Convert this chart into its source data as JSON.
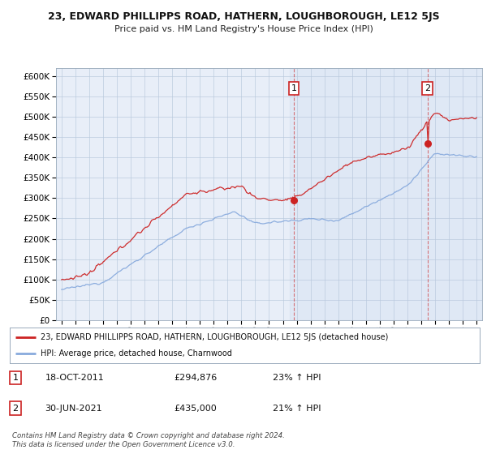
{
  "title": "23, EDWARD PHILLIPPS ROAD, HATHERN, LOUGHBOROUGH, LE12 5JS",
  "subtitle": "Price paid vs. HM Land Registry's House Price Index (HPI)",
  "bg_color": "#ffffff",
  "plot_bg": "#e8eef8",
  "plot_bg_right": "#dce8f5",
  "red_line_color": "#cc2222",
  "blue_line_color": "#88aadd",
  "sale1_x": 2011.8,
  "sale1_y": 294876,
  "sale2_x": 2021.45,
  "sale2_y": 435000,
  "legend_line1": "23, EDWARD PHILLIPPS ROAD, HATHERN, LOUGHBOROUGH, LE12 5JS (detached house)",
  "legend_line2": "HPI: Average price, detached house, Charnwood",
  "table_row1_num": "1",
  "table_row1_date": "18-OCT-2011",
  "table_row1_price": "£294,876",
  "table_row1_hpi": "23% ↑ HPI",
  "table_row2_num": "2",
  "table_row2_date": "30-JUN-2021",
  "table_row2_price": "£435,000",
  "table_row2_hpi": "21% ↑ HPI",
  "footer": "Contains HM Land Registry data © Crown copyright and database right 2024.\nThis data is licensed under the Open Government Licence v3.0.",
  "ylim_min": 0,
  "ylim_max": 620000,
  "yticks": [
    0,
    50000,
    100000,
    150000,
    200000,
    250000,
    300000,
    350000,
    400000,
    450000,
    500000,
    550000,
    600000
  ],
  "xlim_min": 1994.6,
  "xlim_max": 2025.4
}
